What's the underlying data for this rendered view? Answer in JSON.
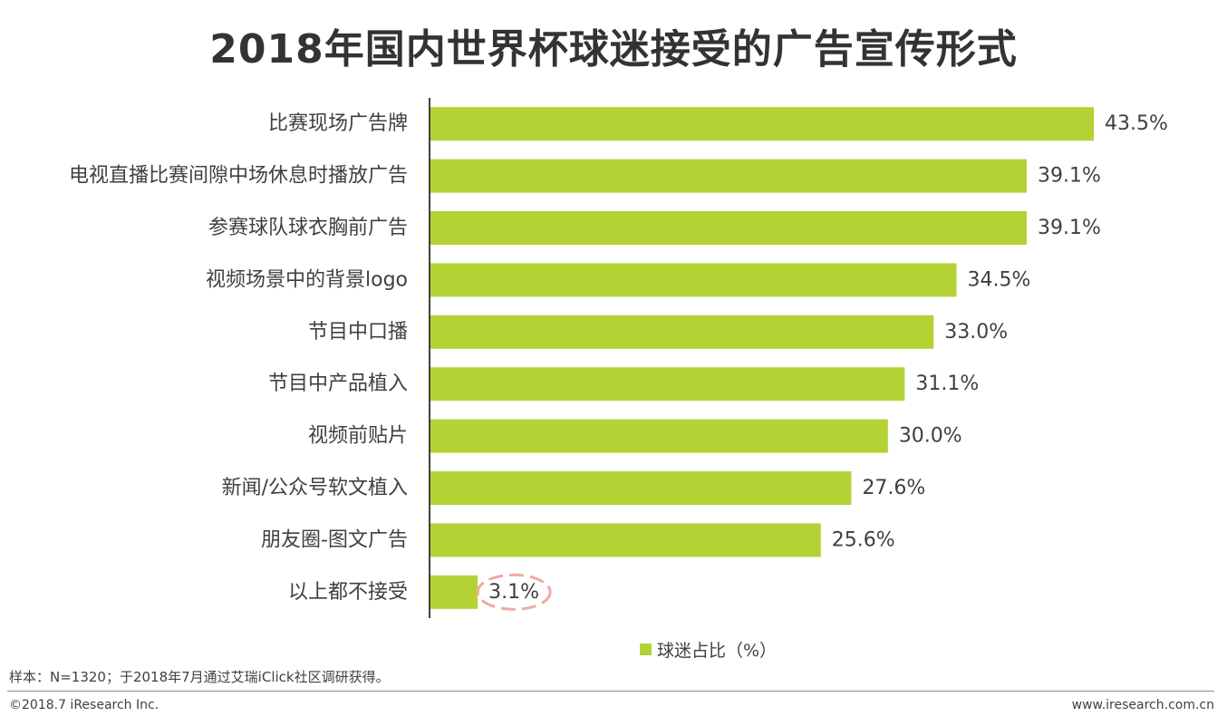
{
  "title": "2018年国内世界杯球迷接受的广告宣传形式",
  "chart_data": {
    "type": "bar",
    "orientation": "horizontal",
    "categories": [
      "比赛现场广告牌",
      "电视直播比赛间隙中场休息时播放广告",
      "参赛球队球衣胸前广告",
      "视频场景中的背景logo",
      "节目中口播",
      "节目中产品植入",
      "视频前贴片",
      "新闻/公众号软文植入",
      "朋友圈-图文广告",
      "以上都不接受"
    ],
    "series": [
      {
        "name": "球迷占比（%）",
        "values": [
          43.5,
          39.1,
          39.1,
          34.5,
          33.0,
          31.1,
          30.0,
          27.6,
          25.6,
          3.1
        ],
        "labels": [
          "43.5%",
          "39.1%",
          "39.1%",
          "34.5%",
          "33.0%",
          "31.1%",
          "30.0%",
          "27.6%",
          "25.6%",
          "3.1%"
        ]
      }
    ],
    "xlim": [
      0,
      50
    ],
    "grid": false,
    "legend_position": "bottom",
    "highlight_category": "以上都不接受"
  },
  "colors": {
    "bar": "#b3d234",
    "axis": "#404040",
    "highlight": "#f0a9a3",
    "text": "#404040"
  },
  "legend": {
    "label": "球迷占比（%）"
  },
  "footnote": "样本：N=1320；于2018年7月通过艾瑞iClick社区调研获得。",
  "footer": {
    "copyright": "©2018.7 iResearch Inc.",
    "site": "www.iresearch.com.cn"
  }
}
